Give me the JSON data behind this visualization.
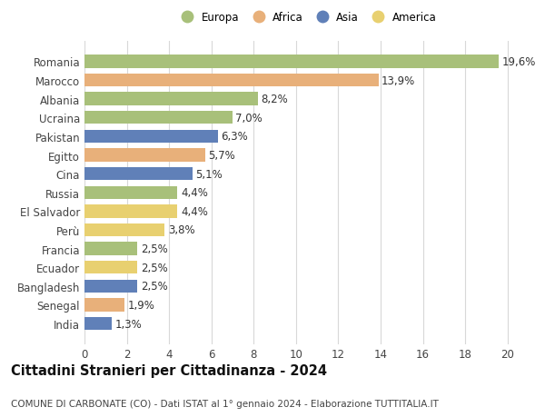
{
  "categories": [
    "Romania",
    "Marocco",
    "Albania",
    "Ucraina",
    "Pakistan",
    "Egitto",
    "Cina",
    "Russia",
    "El Salvador",
    "Perù",
    "Francia",
    "Ecuador",
    "Bangladesh",
    "Senegal",
    "India"
  ],
  "values": [
    19.6,
    13.9,
    8.2,
    7.0,
    6.3,
    5.7,
    5.1,
    4.4,
    4.4,
    3.8,
    2.5,
    2.5,
    2.5,
    1.9,
    1.3
  ],
  "labels": [
    "19,6%",
    "13,9%",
    "8,2%",
    "7,0%",
    "6,3%",
    "5,7%",
    "5,1%",
    "4,4%",
    "4,4%",
    "3,8%",
    "2,5%",
    "2,5%",
    "2,5%",
    "1,9%",
    "1,3%"
  ],
  "continents": [
    "Europa",
    "Africa",
    "Europa",
    "Europa",
    "Asia",
    "Africa",
    "Asia",
    "Europa",
    "America",
    "America",
    "Europa",
    "America",
    "Asia",
    "Africa",
    "Asia"
  ],
  "continent_colors": {
    "Europa": "#a8c07a",
    "Africa": "#e8b07a",
    "Asia": "#6080b8",
    "America": "#e8d070"
  },
  "legend_order": [
    "Europa",
    "Africa",
    "Asia",
    "America"
  ],
  "xlim": [
    0,
    21
  ],
  "xticks": [
    0,
    2,
    4,
    6,
    8,
    10,
    12,
    14,
    16,
    18,
    20
  ],
  "title": "Cittadini Stranieri per Cittadinanza - 2024",
  "subtitle": "COMUNE DI CARBONATE (CO) - Dati ISTAT al 1° gennaio 2024 - Elaborazione TUTTITALIA.IT",
  "background_color": "#ffffff",
  "grid_color": "#d8d8d8",
  "bar_height": 0.7,
  "label_fontsize": 8.5,
  "tick_fontsize": 8.5,
  "title_fontsize": 10.5,
  "subtitle_fontsize": 7.5
}
